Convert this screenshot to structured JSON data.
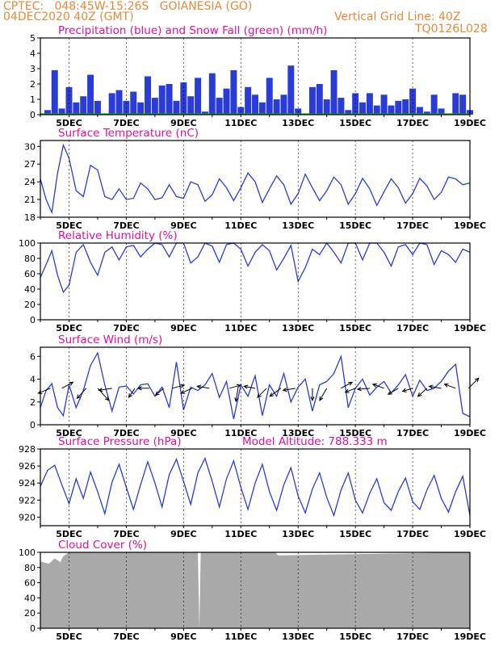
{
  "header": {
    "line1": "CPTEC:   048:45W-15:26S   GOIANESIA (GO)",
    "line2": "04DEC2020 40Z (GMT)",
    "grid_note": "Vertical Grid Line: 40Z",
    "run_code": "TQ0126L028"
  },
  "colors": {
    "header": "#e8883a",
    "title": "#e0109a",
    "line": "#2a3cd8",
    "snow": "#1fa31f",
    "cloud": "#a9a9a9"
  },
  "chart_data": [
    {
      "type": "bar",
      "title": "Precipitation (blue) and Snow Fall (green) (mm/h)",
      "xlabel": "",
      "ylabel": "",
      "x_ticks": [
        "5DEC",
        "7DEC",
        "9DEC",
        "11DEC",
        "13DEC",
        "15DEC",
        "17DEC",
        "19DEC"
      ],
      "x_range_days": [
        4.0,
        19.0
      ],
      "ylim": [
        0,
        5
      ],
      "y_ticks": [
        0,
        1,
        2,
        3,
        4,
        5
      ],
      "grid": "vertical-dashed",
      "series": [
        {
          "name": "blue",
          "x": [
            4.0,
            4.25,
            4.5,
            4.75,
            5.0,
            5.25,
            5.5,
            5.75,
            6.0,
            6.25,
            6.5,
            6.75,
            7.0,
            7.25,
            7.5,
            7.75,
            8.0,
            8.25,
            8.5,
            8.75,
            9.0,
            9.25,
            9.5,
            9.75,
            10.0,
            10.25,
            10.5,
            10.75,
            11.0,
            11.25,
            11.5,
            11.75,
            12.0,
            12.25,
            12.5,
            12.75,
            13.0,
            13.25,
            13.5,
            13.75,
            14.0,
            14.25,
            14.5,
            14.75,
            15.0,
            15.25,
            15.5,
            15.75,
            16.0,
            16.25,
            16.5,
            16.75,
            17.0,
            17.25,
            17.5,
            17.75,
            18.0,
            18.25,
            18.5,
            18.75,
            19.0
          ],
          "values": [
            0,
            0.3,
            2.9,
            0.4,
            1.8,
            0.8,
            1.2,
            2.6,
            0.9,
            0,
            1.4,
            1.6,
            0.9,
            1.5,
            0.8,
            2.5,
            1.1,
            1.9,
            2.0,
            0.9,
            2.1,
            1.2,
            2.4,
            0.2,
            2.7,
            1.1,
            1.7,
            2.9,
            0.5,
            1.8,
            1.3,
            0.8,
            2.4,
            1.0,
            1.3,
            3.2,
            0.4,
            0,
            1.8,
            2.0,
            1.0,
            2.9,
            1.1,
            0.3,
            1.4,
            0.8,
            1.4,
            0.6,
            1.3,
            0.6,
            0.9,
            1.0,
            1.7,
            0.5,
            0.2,
            1.3,
            0.4,
            0,
            1.4,
            1.3,
            0.3
          ]
        },
        {
          "name": "green",
          "x": [
            4.0,
            19.0
          ],
          "values": [
            0.03,
            0.03
          ]
        }
      ]
    },
    {
      "type": "line",
      "title": "Surface Temperature (nC)",
      "x_ticks": [
        "5DEC",
        "7DEC",
        "9DEC",
        "11DEC",
        "13DEC",
        "15DEC",
        "17DEC",
        "19DEC"
      ],
      "x_range_days": [
        4.0,
        19.0
      ],
      "ylim": [
        18,
        31
      ],
      "y_ticks": [
        18,
        21,
        24,
        27,
        30
      ],
      "grid": "vertical-dashed",
      "series": [
        {
          "name": "",
          "x": [
            4.0,
            4.2,
            4.4,
            4.6,
            4.8,
            5.0,
            5.25,
            5.5,
            5.75,
            6.0,
            6.25,
            6.5,
            6.75,
            7.0,
            7.25,
            7.5,
            7.75,
            8.0,
            8.25,
            8.5,
            8.75,
            9.0,
            9.25,
            9.5,
            9.75,
            10.0,
            10.25,
            10.5,
            10.75,
            11.0,
            11.25,
            11.5,
            11.75,
            12.0,
            12.25,
            12.5,
            12.75,
            13.0,
            13.25,
            13.5,
            13.75,
            14.0,
            14.25,
            14.5,
            14.75,
            15.0,
            15.25,
            15.5,
            15.75,
            16.0,
            16.25,
            16.5,
            16.75,
            17.0,
            17.25,
            17.5,
            17.75,
            18.0,
            18.25,
            18.5,
            18.75,
            19.0
          ],
          "values": [
            24.5,
            21.0,
            18.8,
            25.5,
            30.2,
            28.0,
            22.5,
            21.5,
            26.8,
            26.0,
            21.5,
            21.0,
            22.8,
            21.0,
            21.2,
            23.8,
            22.8,
            21.0,
            21.3,
            23.5,
            21.5,
            21.2,
            24.0,
            23.5,
            20.7,
            21.8,
            24.5,
            23.0,
            20.8,
            23.0,
            25.5,
            24.0,
            20.5,
            22.8,
            25.0,
            23.5,
            20.2,
            22.0,
            25.3,
            23.0,
            20.8,
            22.5,
            24.8,
            23.5,
            20.2,
            22.0,
            24.6,
            22.8,
            20.0,
            22.3,
            24.5,
            23.0,
            20.4,
            22.0,
            24.6,
            23.3,
            21.0,
            22.2,
            24.8,
            24.5,
            23.5,
            23.8
          ]
        }
      ]
    },
    {
      "type": "line",
      "title": "Relative Humidity (%)",
      "x_ticks": [
        "5DEC",
        "7DEC",
        "9DEC",
        "11DEC",
        "13DEC",
        "15DEC",
        "17DEC",
        "19DEC"
      ],
      "x_range_days": [
        4.0,
        19.0
      ],
      "ylim": [
        0,
        100
      ],
      "y_ticks": [
        0,
        20,
        40,
        60,
        80,
        100
      ],
      "grid": "vertical-dashed",
      "series": [
        {
          "name": "",
          "x": [
            4.0,
            4.2,
            4.4,
            4.6,
            4.8,
            5.0,
            5.25,
            5.5,
            5.75,
            6.0,
            6.25,
            6.5,
            6.75,
            7.0,
            7.25,
            7.5,
            7.75,
            8.0,
            8.25,
            8.5,
            8.75,
            9.0,
            9.25,
            9.5,
            9.75,
            10.0,
            10.25,
            10.5,
            10.75,
            11.0,
            11.25,
            11.5,
            11.75,
            12.0,
            12.25,
            12.5,
            12.75,
            13.0,
            13.25,
            13.5,
            13.75,
            14.0,
            14.25,
            14.5,
            14.75,
            15.0,
            15.25,
            15.5,
            15.75,
            16.0,
            16.25,
            16.5,
            16.75,
            17.0,
            17.25,
            17.5,
            17.75,
            18.0,
            18.25,
            18.5,
            18.75,
            19.0
          ],
          "values": [
            55,
            72,
            90,
            58,
            36,
            45,
            88,
            98,
            75,
            58,
            88,
            95,
            78,
            95,
            97,
            82,
            92,
            100,
            98,
            82,
            100,
            100,
            74,
            82,
            100,
            96,
            75,
            98,
            100,
            92,
            70,
            88,
            98,
            90,
            65,
            80,
            97,
            50,
            68,
            92,
            85,
            100,
            88,
            74,
            100,
            100,
            78,
            100,
            100,
            88,
            70,
            95,
            98,
            85,
            100,
            98,
            72,
            90,
            85,
            75,
            92,
            88
          ]
        }
      ]
    },
    {
      "type": "line",
      "title": "Surface Wind (m/s)",
      "x_ticks": [
        "5DEC",
        "7DEC",
        "9DEC",
        "11DEC",
        "13DEC",
        "15DEC",
        "17DEC",
        "19DEC"
      ],
      "x_range_days": [
        4.0,
        19.0
      ],
      "ylim": [
        0,
        6.8
      ],
      "y_ticks": [
        0,
        2,
        4,
        6
      ],
      "grid": "vertical-dashed",
      "series": [
        {
          "name": "",
          "x": [
            4.0,
            4.2,
            4.4,
            4.6,
            4.8,
            5.0,
            5.25,
            5.5,
            5.75,
            6.0,
            6.25,
            6.5,
            6.75,
            7.0,
            7.25,
            7.5,
            7.75,
            8.0,
            8.25,
            8.5,
            8.75,
            9.0,
            9.25,
            9.5,
            9.75,
            10.0,
            10.25,
            10.5,
            10.75,
            11.0,
            11.25,
            11.5,
            11.75,
            12.0,
            12.25,
            12.5,
            12.75,
            13.0,
            13.25,
            13.5,
            13.75,
            14.0,
            14.25,
            14.5,
            14.75,
            15.0,
            15.25,
            15.5,
            15.75,
            16.0,
            16.25,
            16.5,
            16.75,
            17.0,
            17.25,
            17.5,
            17.75,
            18.0,
            18.25,
            18.5,
            18.75,
            19.0
          ],
          "values": [
            1.5,
            3.0,
            3.6,
            1.5,
            0.8,
            3.5,
            1.5,
            3.0,
            5.2,
            6.3,
            3.5,
            1.2,
            3.3,
            3.4,
            2.7,
            3.5,
            3.6,
            2.5,
            3.3,
            1.5,
            5.5,
            1.3,
            3.3,
            3.0,
            3.5,
            4.5,
            2.4,
            3.8,
            0.5,
            3.5,
            2.5,
            4.3,
            0.8,
            3.5,
            2.5,
            4.5,
            2.0,
            3.3,
            4.0,
            1.2,
            3.5,
            3.8,
            4.5,
            6.0,
            1.5,
            3.2,
            4.0,
            2.6,
            3.3,
            3.8,
            2.8,
            3.5,
            4.4,
            2.5,
            3.9,
            3.0,
            3.2,
            3.8,
            4.7,
            5.3,
            1.0,
            0.7
          ]
        }
      ],
      "vectors": [
        {
          "x": 4.35,
          "dx": -0.6,
          "dy": -0.25
        },
        {
          "x": 4.75,
          "dx": 0.55,
          "dy": 0.3
        },
        {
          "x": 5.6,
          "dx": -0.45,
          "dy": -0.5
        },
        {
          "x": 6.0,
          "dx": 0.55,
          "dy": -0.6
        },
        {
          "x": 6.5,
          "dx": -0.65,
          "dy": -0.1
        },
        {
          "x": 7.3,
          "dx": -0.3,
          "dy": -0.45
        },
        {
          "x": 7.8,
          "dx": -0.55,
          "dy": 0
        },
        {
          "x": 8.3,
          "dx": -0.4,
          "dy": -0.35
        },
        {
          "x": 8.6,
          "dx": 0.6,
          "dy": 0.15
        },
        {
          "x": 9.3,
          "dx": -0.55,
          "dy": -0.25
        },
        {
          "x": 9.9,
          "dx": -0.6,
          "dy": 0.1
        },
        {
          "x": 10.6,
          "dx": 0.55,
          "dy": 0.15
        },
        {
          "x": 10.9,
          "dx": -0.1,
          "dy": -0.65
        },
        {
          "x": 11.5,
          "dx": -0.55,
          "dy": 0.1
        },
        {
          "x": 11.9,
          "dx": -0.45,
          "dy": -0.45
        },
        {
          "x": 12.4,
          "dx": -0.55,
          "dy": -0.4
        },
        {
          "x": 12.9,
          "dx": -0.6,
          "dy": -0.1
        },
        {
          "x": 13.5,
          "dx": 0,
          "dy": -0.6
        },
        {
          "x": 14.0,
          "dx": -0.35,
          "dy": -0.6
        },
        {
          "x": 14.5,
          "dx": 0.55,
          "dy": 0.3
        },
        {
          "x": 15.0,
          "dx": -0.5,
          "dy": -0.2
        },
        {
          "x": 15.5,
          "dx": -0.6,
          "dy": -0.05
        },
        {
          "x": 16.0,
          "dx": -0.55,
          "dy": 0.2
        },
        {
          "x": 16.5,
          "dx": -0.5,
          "dy": -0.3
        },
        {
          "x": 17.0,
          "dx": -0.5,
          "dy": -0.15
        },
        {
          "x": 17.5,
          "dx": -0.45,
          "dy": -0.4
        },
        {
          "x": 18.0,
          "dx": -0.6,
          "dy": 0.1
        },
        {
          "x": 18.5,
          "dx": -0.55,
          "dy": 0.2
        },
        {
          "x": 18.95,
          "dx": 0.5,
          "dy": 0.5
        }
      ]
    },
    {
      "type": "line",
      "title": "Surface Pressure (hPa)",
      "annotation": "Model Altitude: 788.333 m",
      "x_ticks": [
        "5DEC",
        "7DEC",
        "9DEC",
        "11DEC",
        "13DEC",
        "15DEC",
        "17DEC",
        "19DEC"
      ],
      "x_range_days": [
        4.0,
        19.0
      ],
      "ylim": [
        919,
        928
      ],
      "y_ticks": [
        920,
        922,
        924,
        926,
        928
      ],
      "grid": "vertical-dashed",
      "series": [
        {
          "name": "",
          "x": [
            4.0,
            4.25,
            4.5,
            4.75,
            5.0,
            5.25,
            5.5,
            5.75,
            6.0,
            6.25,
            6.5,
            6.75,
            7.0,
            7.25,
            7.5,
            7.75,
            8.0,
            8.25,
            8.5,
            8.75,
            9.0,
            9.25,
            9.5,
            9.75,
            10.0,
            10.25,
            10.5,
            10.75,
            11.0,
            11.25,
            11.5,
            11.75,
            12.0,
            12.25,
            12.5,
            12.75,
            13.0,
            13.25,
            13.5,
            13.75,
            14.0,
            14.25,
            14.5,
            14.75,
            15.0,
            15.25,
            15.5,
            15.75,
            16.0,
            16.25,
            16.5,
            16.75,
            17.0,
            17.25,
            17.5,
            17.75,
            18.0,
            18.25,
            18.5,
            18.75,
            19.0
          ],
          "values": [
            923.6,
            925.5,
            926.1,
            923.8,
            921.6,
            924.5,
            922.2,
            925.3,
            923.0,
            920.4,
            924.1,
            926.2,
            923.5,
            920.9,
            923.8,
            926.5,
            924.0,
            921.2,
            925.0,
            926.8,
            924.2,
            921.5,
            925.2,
            926.9,
            924.2,
            921.2,
            924.5,
            926.6,
            923.5,
            920.9,
            924.0,
            926.2,
            923.0,
            920.8,
            923.8,
            925.8,
            922.5,
            920.5,
            923.3,
            925.2,
            922.3,
            920.2,
            923.2,
            925.2,
            922.0,
            920.5,
            922.8,
            924.5,
            921.7,
            920.8,
            923.0,
            924.6,
            921.8,
            920.9,
            923.2,
            924.9,
            922.2,
            920.6,
            923.0,
            924.8,
            920.2
          ]
        }
      ]
    },
    {
      "type": "area",
      "title": "Cloud Cover (%)",
      "x_ticks": [
        "5DEC",
        "7DEC",
        "9DEC",
        "11DEC",
        "13DEC",
        "15DEC",
        "17DEC",
        "19DEC"
      ],
      "x_range_days": [
        4.0,
        19.0
      ],
      "ylim": [
        0,
        100
      ],
      "y_ticks": [
        0,
        20,
        40,
        60,
        80,
        100
      ],
      "grid": "vertical-dashed",
      "series": [
        {
          "name": "",
          "x": [
            4.0,
            4.3,
            4.5,
            4.7,
            4.8,
            5.0,
            9.5,
            9.55,
            9.6,
            12.2,
            12.3,
            19.0
          ],
          "values": [
            88,
            85,
            92,
            87,
            95,
            100,
            100,
            0,
            100,
            100,
            96,
            100
          ]
        }
      ]
    }
  ]
}
